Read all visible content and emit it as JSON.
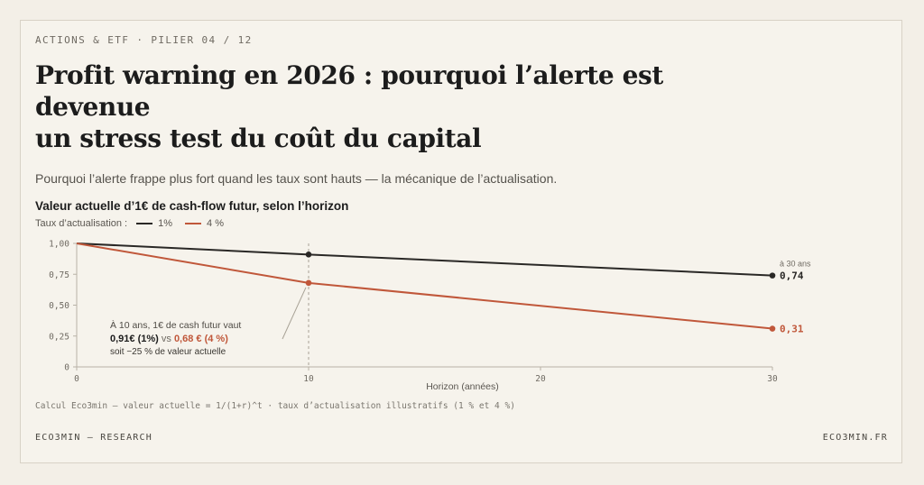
{
  "header": {
    "kicker": "ACTIONS & ETF · PILIER 04 / 12",
    "title_line1": "Profit warning en 2026 : pourquoi l’alerte est devenue",
    "title_line2": "un stress test du coût du capital",
    "subtitle": "Pourquoi l’alerte frappe plus fort quand les taux sont hauts — la mécanique de l’actualisation."
  },
  "chart_data": {
    "type": "line",
    "title": "Valeur actuelle d’1€ de cash-flow futur, selon l’horizon",
    "legend_prefix": "Taux d’actualisation :",
    "xlabel": "Horizon (années)",
    "ylabel": "",
    "xlim": [
      0,
      30
    ],
    "ylim": [
      0,
      1
    ],
    "x_ticks": [
      "0",
      "10",
      "20",
      "30"
    ],
    "y_ticks": [
      "0",
      "0,25",
      "0,50",
      "0,75",
      "1,00"
    ],
    "series": [
      {
        "name": "1%",
        "color": "#2a2826",
        "x": [
          0,
          10,
          30
        ],
        "values": [
          1.0,
          0.91,
          0.74
        ],
        "end_label": "0,74"
      },
      {
        "name": "4 %",
        "color": "#c0573a",
        "x": [
          0,
          10,
          30
        ],
        "values": [
          1.0,
          0.68,
          0.31
        ],
        "end_label": "0,31"
      }
    ],
    "end_note": "à 30 ans",
    "annotation": {
      "line1": "À 10 ans, 1€ de cash futur vaut",
      "val1": "0,91€ (1%)",
      "vs": "vs",
      "val2": "0,68 € (4 %)",
      "line3": "soit −25 % de valeur actuelle"
    },
    "grid": false,
    "legend_position": "top-left"
  },
  "footer": {
    "note": "Calcul Eco3min — valeur actuelle = 1/(1+r)^t · taux d’actualisation illustratifs (1 % et 4 %)",
    "brand_left": "ECO3MIN — RESEARCH",
    "brand_right": "ECO3MIN.FR"
  }
}
